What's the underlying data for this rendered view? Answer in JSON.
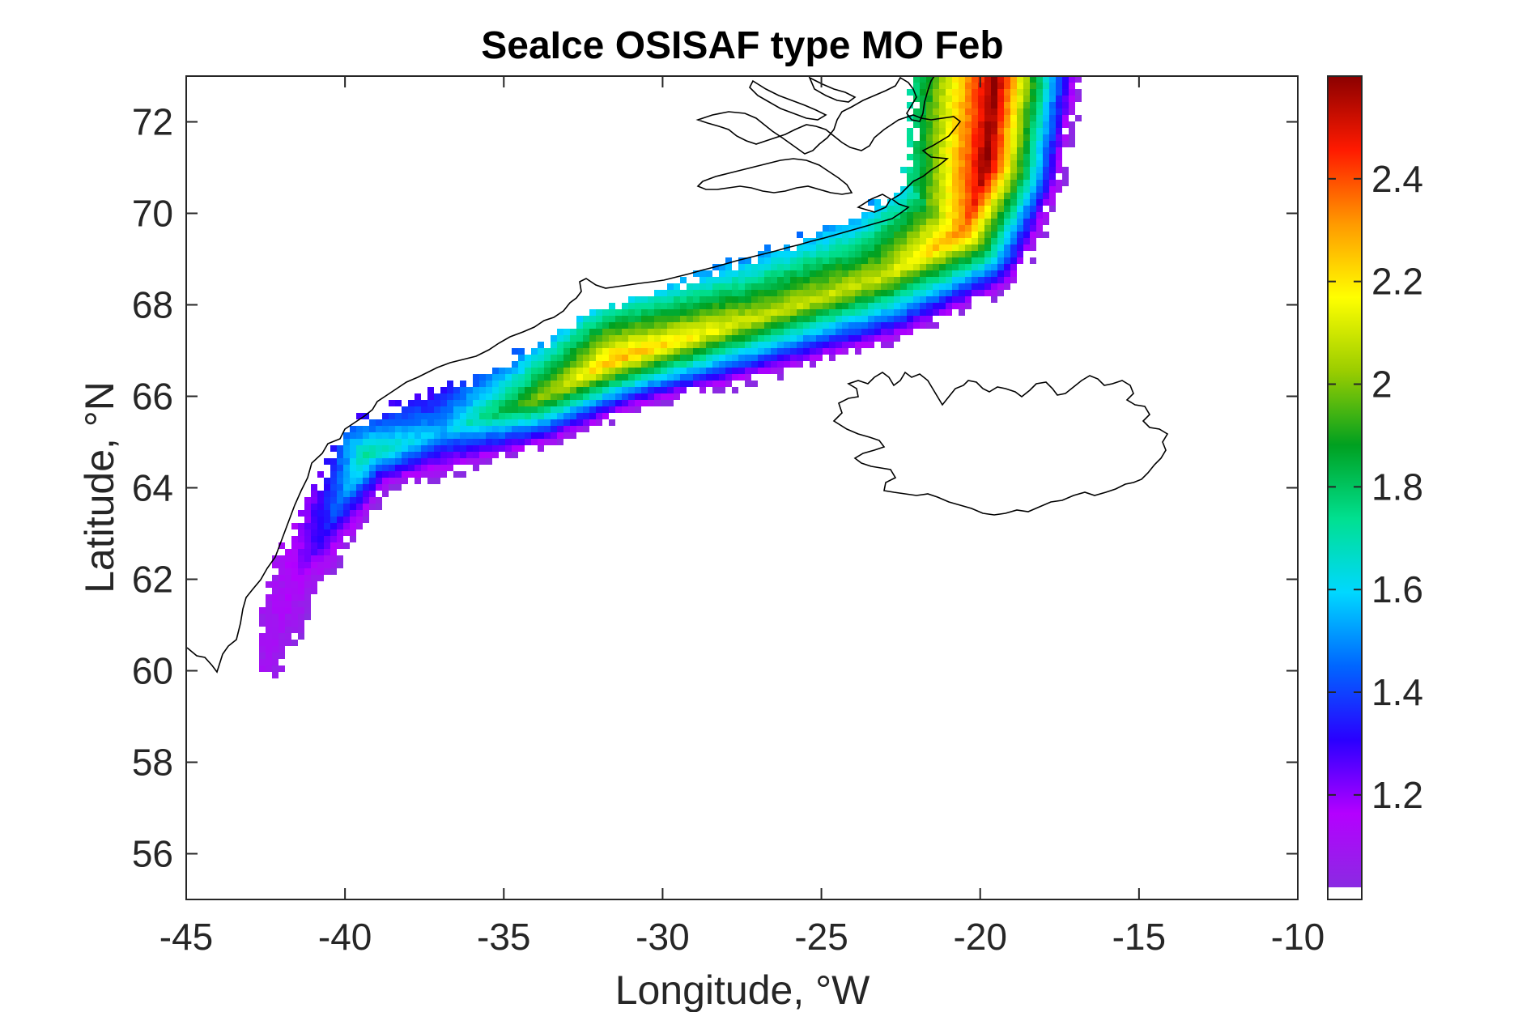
{
  "chart_data": {
    "type": "heatmap",
    "title": "SeaIce OSISAF type MO Feb",
    "xlabel": "Longitude, °W",
    "ylabel": "Latitude, °N",
    "xlim": [
      -45,
      -10
    ],
    "ylim": [
      55,
      73
    ],
    "xticks": [
      -45,
      -40,
      -35,
      -30,
      -25,
      -20,
      -15,
      -10
    ],
    "yticks": [
      56,
      58,
      60,
      62,
      64,
      66,
      68,
      70,
      72
    ],
    "colorbar": {
      "range": [
        1.02,
        2.6
      ],
      "ticks": [
        1.2,
        1.4,
        1.6,
        1.8,
        2,
        2.2,
        2.4
      ],
      "colormap": [
        "#8a2be2",
        "#b400ff",
        "#2a00ff",
        "#0066ff",
        "#00d8ff",
        "#00e090",
        "#00a020",
        "#9acd00",
        "#ffff00",
        "#ff9900",
        "#ff1a00",
        "#8b0000"
      ]
    },
    "ice_band": {
      "centerline": [
        {
          "lon": -42.5,
          "lat": 60.2,
          "v": 1.1
        },
        {
          "lon": -41.5,
          "lat": 62.0,
          "v": 1.15
        },
        {
          "lon": -40.0,
          "lat": 63.8,
          "v": 1.5
        },
        {
          "lon": -39.3,
          "lat": 64.7,
          "v": 1.75
        },
        {
          "lon": -37.0,
          "lat": 65.2,
          "v": 1.55
        },
        {
          "lon": -34.0,
          "lat": 65.9,
          "v": 2.0
        },
        {
          "lon": -31.5,
          "lat": 66.8,
          "v": 2.3
        },
        {
          "lon": -27.0,
          "lat": 67.7,
          "v": 2.1
        },
        {
          "lon": -23.0,
          "lat": 68.6,
          "v": 2.1
        },
        {
          "lon": -20.5,
          "lat": 69.6,
          "v": 2.35
        },
        {
          "lon": -19.8,
          "lat": 71.0,
          "v": 2.6
        },
        {
          "lon": -19.5,
          "lat": 72.9,
          "v": 2.6
        }
      ]
    }
  }
}
